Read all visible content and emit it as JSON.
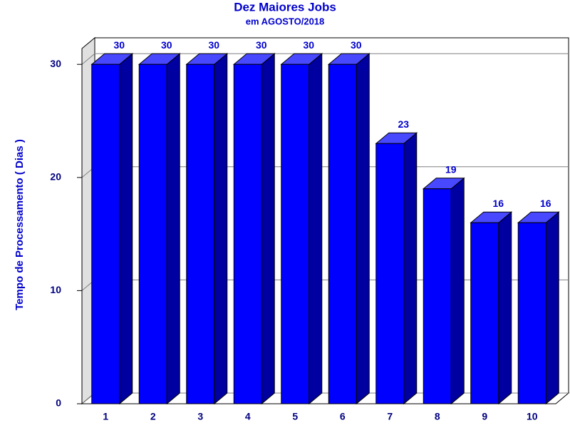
{
  "chart_data": {
    "type": "bar3d",
    "title": "Dez Maiores Jobs",
    "subtitle": "em AGOSTO/2018",
    "y_label": "Tempo de Processamento ( Dias )",
    "categories": [
      "1",
      "2",
      "3",
      "4",
      "5",
      "6",
      "7",
      "8",
      "9",
      "10"
    ],
    "values": [
      30,
      30,
      30,
      30,
      30,
      30,
      23,
      19,
      16,
      16
    ],
    "color": "#0000ff",
    "ylim": [
      0,
      31.4
    ],
    "yticks": [
      0,
      10,
      20,
      30
    ],
    "grid": true
  }
}
